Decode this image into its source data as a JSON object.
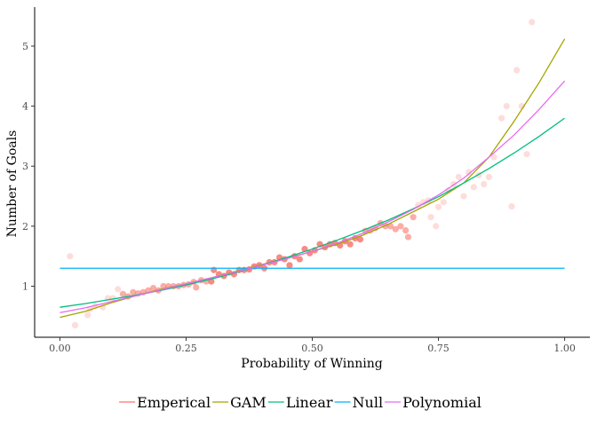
{
  "chart_data": {
    "type": "scatter",
    "xlabel": "Probability of Winning",
    "ylabel": "Number of Goals",
    "xlim": [
      -0.05,
      1.05
    ],
    "ylim": [
      0.15,
      5.65
    ],
    "x_ticks": [
      0.0,
      0.25,
      0.5,
      0.75,
      1.0
    ],
    "x_tick_labels": [
      "0.00",
      "0.25",
      "0.50",
      "0.75",
      "1.00"
    ],
    "y_ticks": [
      1,
      2,
      3,
      4,
      5
    ],
    "y_tick_labels": [
      "1",
      "2",
      "3",
      "4",
      "5"
    ],
    "grid": false,
    "legend_position": "bottom",
    "series": [
      {
        "name": "Emperical",
        "color": "#f8766d",
        "points": [
          [
            0.02,
            1.5
          ],
          [
            0.03,
            0.35
          ],
          [
            0.055,
            0.52
          ],
          [
            0.06,
            0.62
          ],
          [
            0.07,
            0.67
          ],
          [
            0.085,
            0.65
          ],
          [
            0.095,
            0.8
          ],
          [
            0.105,
            0.8
          ],
          [
            0.115,
            0.95
          ],
          [
            0.125,
            0.87
          ],
          [
            0.135,
            0.83
          ],
          [
            0.145,
            0.9
          ],
          [
            0.155,
            0.88
          ],
          [
            0.165,
            0.9
          ],
          [
            0.175,
            0.93
          ],
          [
            0.185,
            0.97
          ],
          [
            0.195,
            0.93
          ],
          [
            0.205,
            1.0
          ],
          [
            0.215,
            1.0
          ],
          [
            0.225,
            1.0
          ],
          [
            0.235,
            1.0
          ],
          [
            0.245,
            1.02
          ],
          [
            0.255,
            1.03
          ],
          [
            0.265,
            1.07
          ],
          [
            0.27,
            0.98
          ],
          [
            0.28,
            1.1
          ],
          [
            0.29,
            1.08
          ],
          [
            0.3,
            1.08
          ],
          [
            0.305,
            1.27
          ],
          [
            0.315,
            1.2
          ],
          [
            0.325,
            1.17
          ],
          [
            0.335,
            1.23
          ],
          [
            0.345,
            1.2
          ],
          [
            0.355,
            1.27
          ],
          [
            0.365,
            1.27
          ],
          [
            0.375,
            1.28
          ],
          [
            0.385,
            1.33
          ],
          [
            0.395,
            1.35
          ],
          [
            0.405,
            1.3
          ],
          [
            0.415,
            1.4
          ],
          [
            0.425,
            1.4
          ],
          [
            0.435,
            1.48
          ],
          [
            0.445,
            1.45
          ],
          [
            0.455,
            1.35
          ],
          [
            0.465,
            1.5
          ],
          [
            0.475,
            1.45
          ],
          [
            0.485,
            1.62
          ],
          [
            0.495,
            1.55
          ],
          [
            0.505,
            1.6
          ],
          [
            0.515,
            1.7
          ],
          [
            0.525,
            1.65
          ],
          [
            0.535,
            1.7
          ],
          [
            0.545,
            1.72
          ],
          [
            0.555,
            1.68
          ],
          [
            0.565,
            1.75
          ],
          [
            0.575,
            1.7
          ],
          [
            0.585,
            1.8
          ],
          [
            0.595,
            1.78
          ],
          [
            0.605,
            1.92
          ],
          [
            0.615,
            1.93
          ],
          [
            0.625,
            1.97
          ],
          [
            0.635,
            2.05
          ],
          [
            0.645,
            2.0
          ],
          [
            0.655,
            2.0
          ],
          [
            0.665,
            1.95
          ],
          [
            0.675,
            2.0
          ],
          [
            0.685,
            1.93
          ],
          [
            0.69,
            1.82
          ],
          [
            0.7,
            2.15
          ],
          [
            0.71,
            2.35
          ],
          [
            0.72,
            2.4
          ],
          [
            0.73,
            2.43
          ],
          [
            0.735,
            2.15
          ],
          [
            0.745,
            2.0
          ],
          [
            0.75,
            2.32
          ],
          [
            0.76,
            2.4
          ],
          [
            0.77,
            2.6
          ],
          [
            0.78,
            2.7
          ],
          [
            0.79,
            2.82
          ],
          [
            0.8,
            2.5
          ],
          [
            0.81,
            2.9
          ],
          [
            0.82,
            2.65
          ],
          [
            0.83,
            2.85
          ],
          [
            0.84,
            2.7
          ],
          [
            0.85,
            2.82
          ],
          [
            0.86,
            3.15
          ],
          [
            0.875,
            3.8
          ],
          [
            0.885,
            4.0
          ],
          [
            0.895,
            2.33
          ],
          [
            0.905,
            4.6
          ],
          [
            0.915,
            4.0
          ],
          [
            0.925,
            3.2
          ],
          [
            0.935,
            5.4
          ]
        ]
      },
      {
        "name": "GAM",
        "color": "#a3a500",
        "points": [
          [
            0.0,
            0.48
          ],
          [
            0.05,
            0.58
          ],
          [
            0.1,
            0.72
          ],
          [
            0.15,
            0.84
          ],
          [
            0.2,
            0.95
          ],
          [
            0.25,
            1.04
          ],
          [
            0.3,
            1.14
          ],
          [
            0.35,
            1.25
          ],
          [
            0.4,
            1.36
          ],
          [
            0.45,
            1.47
          ],
          [
            0.5,
            1.58
          ],
          [
            0.55,
            1.7
          ],
          [
            0.6,
            1.85
          ],
          [
            0.65,
            2.03
          ],
          [
            0.7,
            2.24
          ],
          [
            0.75,
            2.45
          ],
          [
            0.8,
            2.72
          ],
          [
            0.85,
            3.15
          ],
          [
            0.9,
            3.75
          ],
          [
            0.95,
            4.4
          ],
          [
            1.0,
            5.12
          ]
        ]
      },
      {
        "name": "Linear",
        "color": "#00bf7d",
        "points": [
          [
            0.0,
            0.65
          ],
          [
            0.05,
            0.71
          ],
          [
            0.1,
            0.78
          ],
          [
            0.15,
            0.85
          ],
          [
            0.2,
            0.93
          ],
          [
            0.25,
            1.02
          ],
          [
            0.3,
            1.12
          ],
          [
            0.35,
            1.23
          ],
          [
            0.4,
            1.35
          ],
          [
            0.45,
            1.48
          ],
          [
            0.5,
            1.62
          ],
          [
            0.55,
            1.77
          ],
          [
            0.6,
            1.93
          ],
          [
            0.65,
            2.1
          ],
          [
            0.7,
            2.29
          ],
          [
            0.75,
            2.49
          ],
          [
            0.8,
            2.72
          ],
          [
            0.85,
            2.96
          ],
          [
            0.9,
            3.22
          ],
          [
            0.95,
            3.5
          ],
          [
            1.0,
            3.8
          ]
        ]
      },
      {
        "name": "Null",
        "color": "#00b0f6",
        "points": [
          [
            0.0,
            1.3
          ],
          [
            1.0,
            1.3
          ]
        ]
      },
      {
        "name": "Polynomial",
        "color": "#e76bf3",
        "points": [
          [
            0.0,
            0.56
          ],
          [
            0.05,
            0.64
          ],
          [
            0.1,
            0.74
          ],
          [
            0.15,
            0.84
          ],
          [
            0.2,
            0.94
          ],
          [
            0.25,
            1.04
          ],
          [
            0.3,
            1.14
          ],
          [
            0.35,
            1.24
          ],
          [
            0.4,
            1.35
          ],
          [
            0.45,
            1.46
          ],
          [
            0.5,
            1.58
          ],
          [
            0.55,
            1.72
          ],
          [
            0.6,
            1.88
          ],
          [
            0.65,
            2.07
          ],
          [
            0.7,
            2.28
          ],
          [
            0.75,
            2.52
          ],
          [
            0.8,
            2.8
          ],
          [
            0.85,
            3.15
          ],
          [
            0.9,
            3.52
          ],
          [
            0.95,
            3.95
          ],
          [
            1.0,
            4.42
          ]
        ]
      }
    ]
  }
}
